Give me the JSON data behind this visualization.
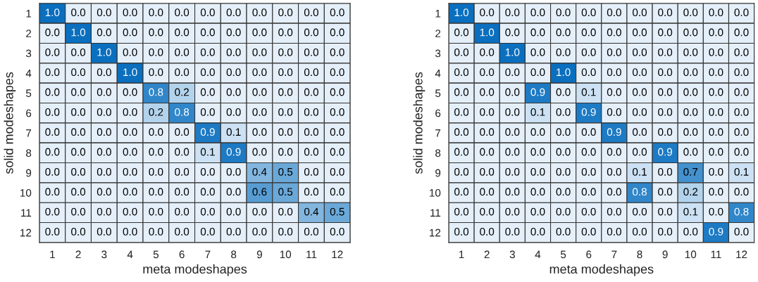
{
  "chart_data": [
    {
      "type": "heatmap",
      "xlabel": "meta modeshapes",
      "ylabel": "solid modeshapes",
      "categories": [
        "1",
        "2",
        "3",
        "4",
        "5",
        "6",
        "7",
        "8",
        "9",
        "10",
        "11",
        "12"
      ],
      "y_categories": [
        "1",
        "2",
        "3",
        "4",
        "5",
        "6",
        "7",
        "8",
        "9",
        "10",
        "11",
        "12"
      ],
      "cells": [
        [
          1.0,
          0,
          0,
          0,
          0,
          0,
          0,
          0,
          0,
          0,
          0,
          0
        ],
        [
          0,
          1.0,
          0,
          0,
          0,
          0,
          0,
          0,
          0,
          0,
          0,
          0
        ],
        [
          0,
          0,
          1.0,
          0,
          0,
          0,
          0,
          0,
          0,
          0,
          0,
          0
        ],
        [
          0,
          0,
          0,
          1.0,
          0,
          0,
          0,
          0,
          0,
          0,
          0,
          0
        ],
        [
          0,
          0,
          0,
          0,
          0.8,
          0.2,
          0,
          0,
          0,
          0,
          0,
          0
        ],
        [
          0,
          0,
          0,
          0,
          0.2,
          0.8,
          0,
          0,
          0,
          0,
          0,
          0
        ],
        [
          0,
          0,
          0,
          0,
          0,
          0,
          0.9,
          0.1,
          0,
          0,
          0,
          0
        ],
        [
          0,
          0,
          0,
          0,
          0,
          0,
          0.1,
          0.9,
          0,
          0,
          0,
          0
        ],
        [
          0,
          0,
          0,
          0,
          0,
          0,
          0,
          0,
          0.4,
          0.5,
          0,
          0
        ],
        [
          0,
          0,
          0,
          0,
          0,
          0,
          0,
          0,
          0.6,
          0.5,
          0,
          0
        ],
        [
          0,
          0,
          0,
          0,
          0,
          0,
          0,
          0,
          0,
          0,
          0.4,
          0.5
        ],
        [
          0,
          0,
          0,
          0,
          0,
          0,
          0,
          0,
          0,
          0,
          0,
          0
        ]
      ],
      "cell_labels": [
        [
          "1.0",
          "0.0",
          "0.0",
          "0.0",
          "0.0",
          "0.0",
          "0.0",
          "0.0",
          "0.0",
          "0.0",
          "0.0",
          "0.0"
        ],
        [
          "0.0",
          "1.0",
          "0.0",
          "0.0",
          "0.0",
          "0.0",
          "0.0",
          "0.0",
          "0.0",
          "0.0",
          "0.0",
          "0.0"
        ],
        [
          "0.0",
          "0.0",
          "1.0",
          "0.0",
          "0.0",
          "0.0",
          "0.0",
          "0.0",
          "0.0",
          "0.0",
          "0.0",
          "0.0"
        ],
        [
          "0.0",
          "0.0",
          "0.0",
          "1.0",
          "0.0",
          "0.0",
          "0.0",
          "0.0",
          "0.0",
          "0.0",
          "0.0",
          "0.0"
        ],
        [
          "0.0",
          "0.0",
          "0.0",
          "0.0",
          "0.8",
          "0.2",
          "0.0",
          "0.0",
          "0.0",
          "0.0",
          "0.0",
          "0.0"
        ],
        [
          "0.0",
          "0.0",
          "0.0",
          "0.0",
          "0.2",
          "0.8",
          "0.0",
          "0.0",
          "0.0",
          "0.0",
          "0.0",
          "0.0"
        ],
        [
          "0.0",
          "0.0",
          "0.0",
          "0.0",
          "0.0",
          "0.0",
          "0.9",
          "0.1",
          "0.0",
          "0.0",
          "0.0",
          "0.0"
        ],
        [
          "0.0",
          "0.0",
          "0.0",
          "0.0",
          "0.0",
          "0.0",
          "0.1",
          "0.9",
          "0.0",
          "0.0",
          "0.0",
          "0.0"
        ],
        [
          "0.0",
          "0.0",
          "0.0",
          "0.0",
          "0.0",
          "0.0",
          "0.0",
          "0.0",
          "0.4",
          "0.5",
          "0.0",
          "0.0"
        ],
        [
          "0.0",
          "0.0",
          "0.0",
          "0.0",
          "0.0",
          "0.0",
          "0.0",
          "0.0",
          "0.6",
          "0.5",
          "0.0",
          "0.0"
        ],
        [
          "0.0",
          "0.0",
          "0.0",
          "0.0",
          "0.0",
          "0.0",
          "0.0",
          "0.0",
          "0.0",
          "0.0",
          "0.4",
          "0.5"
        ],
        [
          "0.0",
          "0.0",
          "0.0",
          "0.0",
          "0.0",
          "0.0",
          "0.0",
          "0.0",
          "0.0",
          "0.0",
          "0.0",
          "0.0"
        ]
      ]
    },
    {
      "type": "heatmap",
      "xlabel": "meta modeshapes",
      "ylabel": "solid modeshapes",
      "categories": [
        "1",
        "2",
        "3",
        "4",
        "5",
        "6",
        "7",
        "8",
        "9",
        "10",
        "11",
        "12"
      ],
      "y_categories": [
        "1",
        "2",
        "3",
        "4",
        "5",
        "6",
        "7",
        "8",
        "9",
        "10",
        "11",
        "12"
      ],
      "cells": [
        [
          1.0,
          0,
          0,
          0,
          0,
          0,
          0,
          0,
          0,
          0,
          0,
          0
        ],
        [
          0,
          1.0,
          0,
          0,
          0,
          0,
          0,
          0,
          0,
          0,
          0,
          0
        ],
        [
          0,
          0,
          1.0,
          0,
          0,
          0,
          0,
          0,
          0,
          0,
          0,
          0
        ],
        [
          0,
          0,
          0,
          0,
          1.0,
          0,
          0,
          0,
          0,
          0,
          0,
          0
        ],
        [
          0,
          0,
          0,
          0.9,
          0,
          0.1,
          0,
          0,
          0,
          0,
          0,
          0
        ],
        [
          0,
          0,
          0,
          0.1,
          0,
          0.9,
          0,
          0,
          0,
          0,
          0,
          0
        ],
        [
          0,
          0,
          0,
          0,
          0,
          0,
          0.9,
          0,
          0,
          0,
          0,
          0
        ],
        [
          0,
          0,
          0,
          0,
          0,
          0,
          0,
          0,
          0.9,
          0,
          0,
          0
        ],
        [
          0,
          0,
          0,
          0,
          0,
          0,
          0,
          0.1,
          0,
          0.7,
          0,
          0.1
        ],
        [
          0,
          0,
          0,
          0,
          0,
          0,
          0,
          0.8,
          0,
          0.2,
          0,
          0
        ],
        [
          0,
          0,
          0,
          0,
          0,
          0,
          0,
          0,
          0,
          0.1,
          0,
          0.8
        ],
        [
          0,
          0,
          0,
          0,
          0,
          0,
          0,
          0,
          0,
          0,
          0.9,
          0
        ]
      ],
      "cell_labels": [
        [
          "1.0",
          "0.0",
          "0.0",
          "0.0",
          "0.0",
          "0.0",
          "0.0",
          "0.0",
          "0.0",
          "0.0",
          "0.0",
          "0.0"
        ],
        [
          "0.0",
          "1.0",
          "0.0",
          "0.0",
          "0.0",
          "0.0",
          "0.0",
          "0.0",
          "0.0",
          "0.0",
          "0.0",
          "0.0"
        ],
        [
          "0.0",
          "0.0",
          "1.0",
          "0.0",
          "0.0",
          "0.0",
          "0.0",
          "0.0",
          "0.0",
          "0.0",
          "0.0",
          "0.0"
        ],
        [
          "0.0",
          "0.0",
          "0.0",
          "0.0",
          "1.0",
          "0.0",
          "0.0",
          "0.0",
          "0.0",
          "0.0",
          "0.0",
          "0.0"
        ],
        [
          "0.0",
          "0.0",
          "0.0",
          "0.9",
          "0.0",
          "0.1",
          "0.0",
          "0.0",
          "0.0",
          "0.0",
          "0.0",
          "0.0"
        ],
        [
          "0.0",
          "0.0",
          "0.0",
          "0.1",
          "0.0",
          "0.9",
          "0.0",
          "0.0",
          "0.0",
          "0.0",
          "0.0",
          "0.0"
        ],
        [
          "0.0",
          "0.0",
          "0.0",
          "0.0",
          "0.0",
          "0.0",
          "0.9",
          "0.0",
          "0.0",
          "0.0",
          "0.0",
          "0.0"
        ],
        [
          "0.0",
          "0.0",
          "0.0",
          "0.0",
          "0.0",
          "0.0",
          "0.0",
          "0.0",
          "0.9",
          "0.0",
          "0.0",
          "0.0"
        ],
        [
          "0.0",
          "0.0",
          "0.0",
          "0.0",
          "0.0",
          "0.0",
          "0.0",
          "0.1",
          "0.0",
          "0.7",
          "0.0",
          "0.1"
        ],
        [
          "0.0",
          "0.0",
          "0.0",
          "0.0",
          "0.0",
          "0.0",
          "0.0",
          "0.8",
          "0.0",
          "0.2",
          "0.0",
          "0.0"
        ],
        [
          "0.0",
          "0.0",
          "0.0",
          "0.0",
          "0.0",
          "0.0",
          "0.0",
          "0.0",
          "0.0",
          "0.1",
          "0.0",
          "0.8"
        ],
        [
          "0.0",
          "0.0",
          "0.0",
          "0.0",
          "0.0",
          "0.0",
          "0.0",
          "0.0",
          "0.0",
          "0.0",
          "0.9",
          "0.0"
        ]
      ]
    }
  ]
}
